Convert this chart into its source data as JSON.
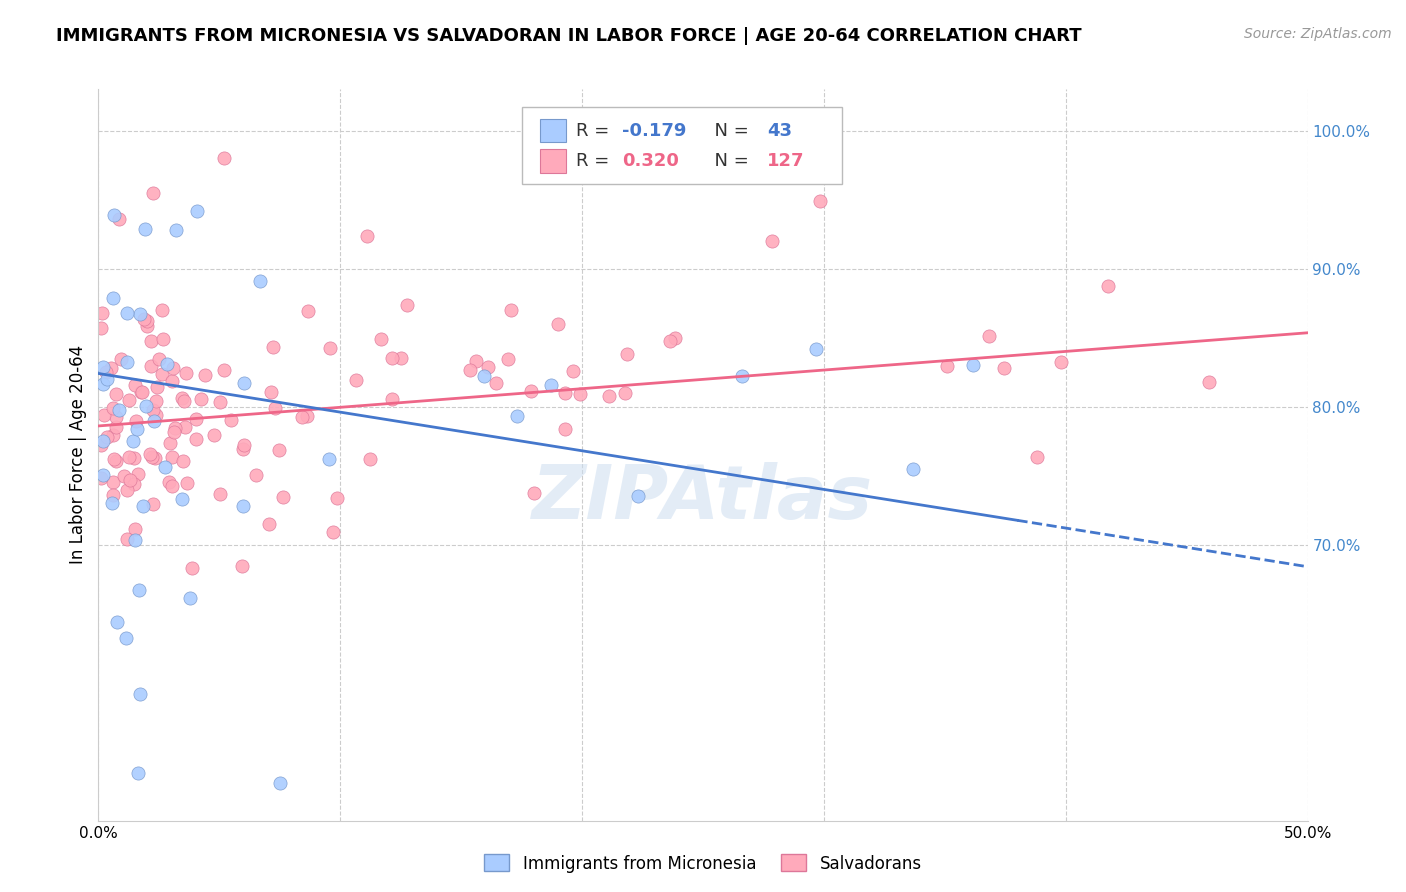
{
  "title": "IMMIGRANTS FROM MICRONESIA VS SALVADORAN IN LABOR FORCE | AGE 20-64 CORRELATION CHART",
  "source": "Source: ZipAtlas.com",
  "ylabel": "In Labor Force | Age 20-64",
  "xlim": [
    0.0,
    0.5
  ],
  "ylim": [
    0.5,
    1.03
  ],
  "xticks": [
    0.0,
    0.1,
    0.2,
    0.3,
    0.4,
    0.5
  ],
  "xticklabels": [
    "0.0%",
    "",
    "",
    "",
    "",
    "50.0%"
  ],
  "yticks_right": [
    1.0,
    0.9,
    0.8,
    0.7
  ],
  "yticklabels_right": [
    "100.0%",
    "90.0%",
    "80.0%",
    "70.0%"
  ],
  "grid_color": "#cccccc",
  "background_color": "#ffffff",
  "series1_color": "#aaccff",
  "series1_edge": "#7799cc",
  "series2_color": "#ffaabb",
  "series2_edge": "#dd7799",
  "line1_color": "#4477cc",
  "line2_color": "#ee6688",
  "r1": -0.179,
  "n1": 43,
  "r2": 0.32,
  "n2": 127,
  "legend_label1": "Immigrants from Micronesia",
  "legend_label2": "Salvadorans",
  "watermark": "ZIPAtlas",
  "title_fontsize": 13,
  "axis_label_fontsize": 12,
  "tick_fontsize": 11,
  "right_tick_color": "#4488cc",
  "line1_intercept": 0.824,
  "line1_slope": -0.28,
  "line1_solid_end": 0.38,
  "line2_intercept": 0.786,
  "line2_slope": 0.135
}
